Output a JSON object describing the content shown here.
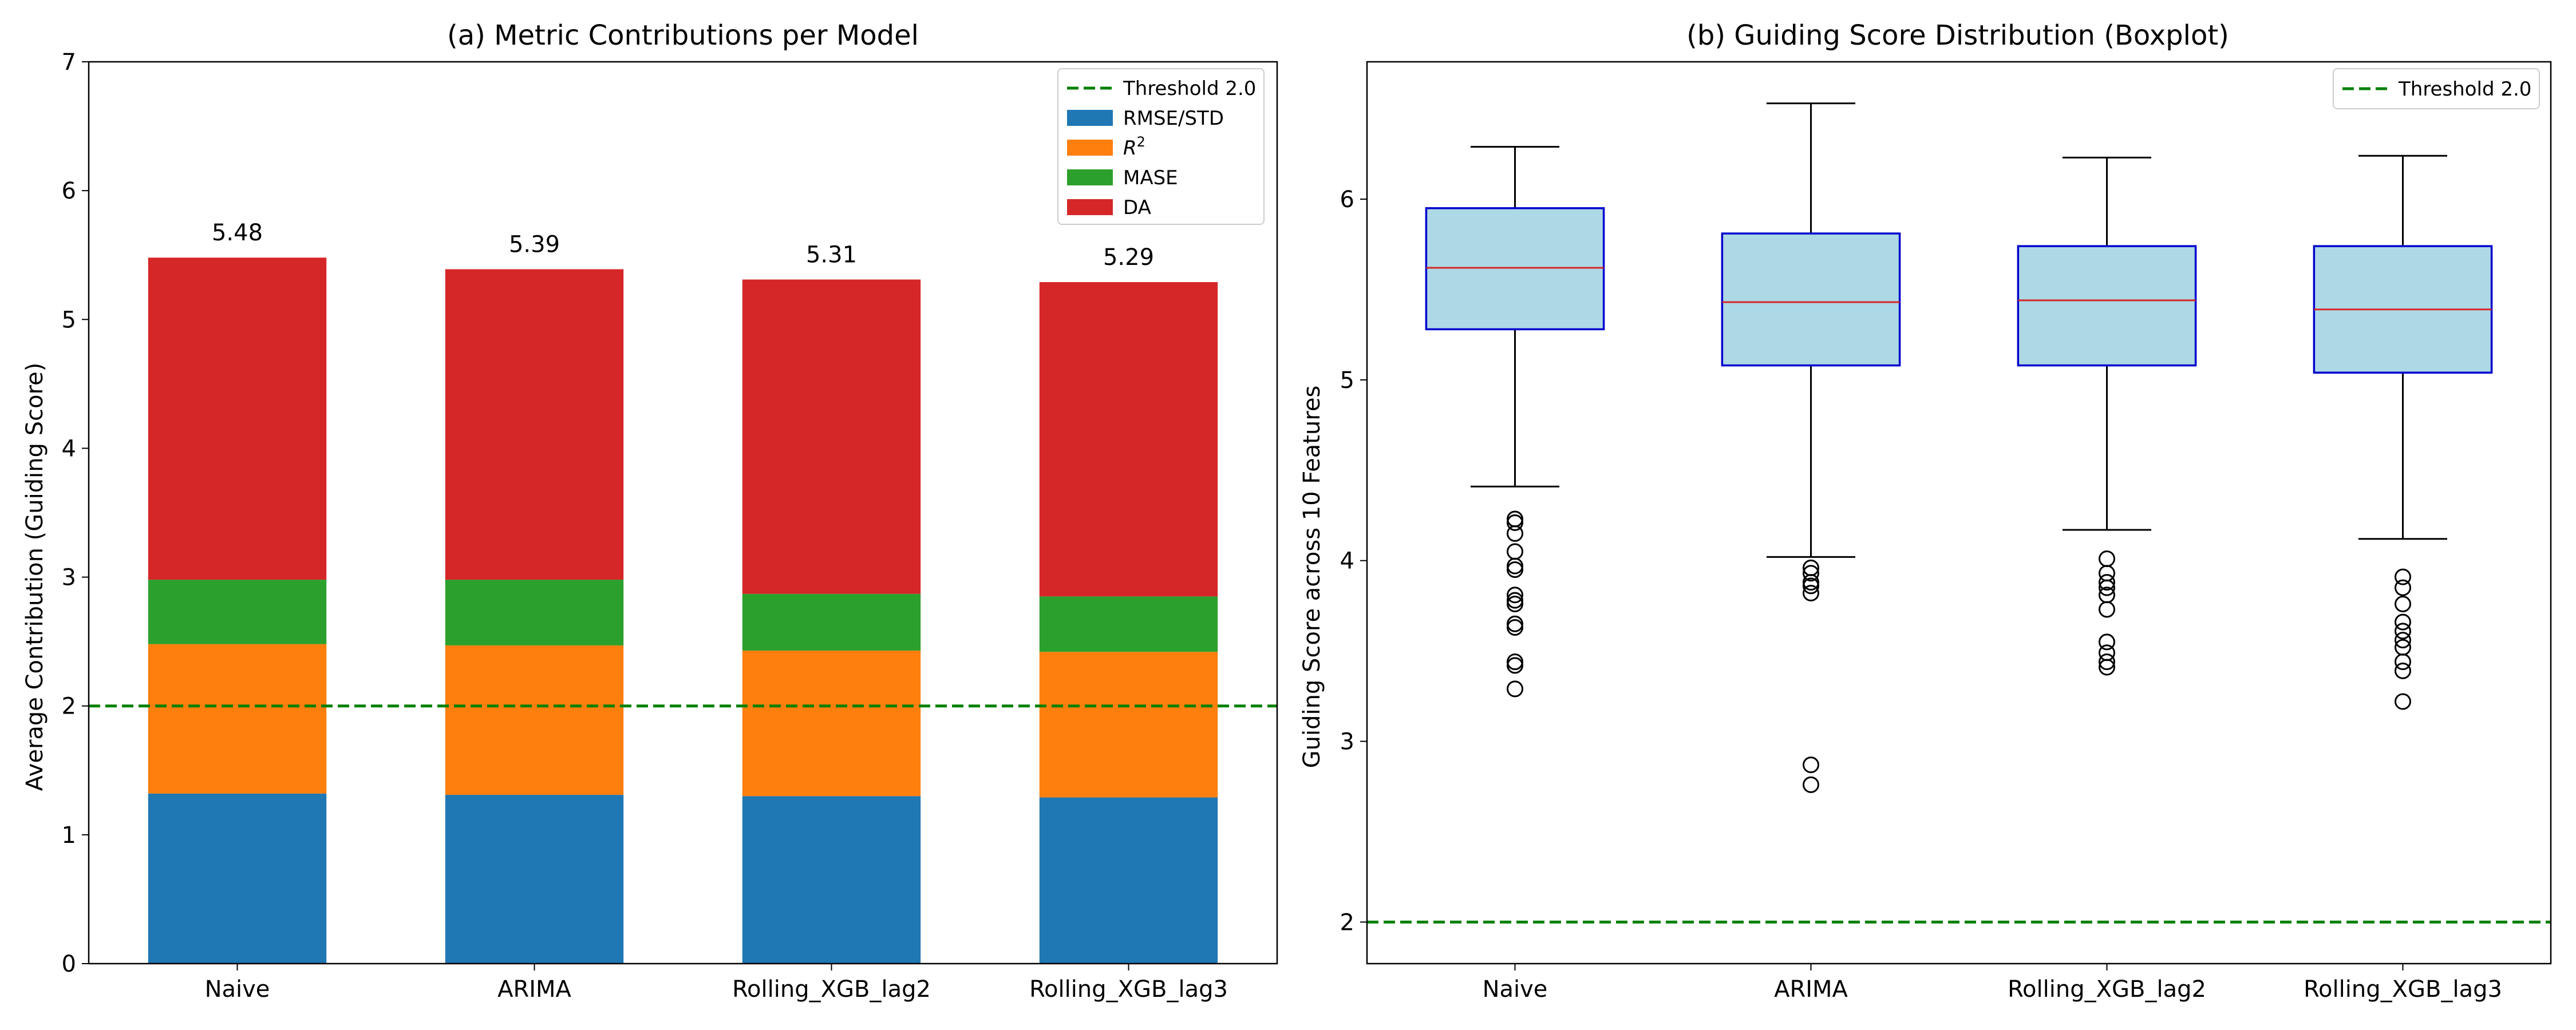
{
  "chart_data": [
    {
      "type": "bar",
      "stacked": true,
      "title": "(a) Metric Contributions per Model",
      "xlabel": "",
      "ylabel": "Average Contribution (Guiding Score)",
      "categories": [
        "Naive",
        "ARIMA",
        "Rolling_XGB_lag2",
        "Rolling_XGB_lag3"
      ],
      "ylim": [
        0,
        7
      ],
      "yticks": [
        "0",
        "1",
        "2",
        "3",
        "4",
        "5",
        "6",
        "7"
      ],
      "series": [
        {
          "name": "RMSE/STD",
          "color": "#1f77b4",
          "values": [
            1.32,
            1.31,
            1.3,
            1.29
          ]
        },
        {
          "name": "R2",
          "color": "#ff7f0e",
          "values": [
            1.16,
            1.16,
            1.13,
            1.13
          ]
        },
        {
          "name": "MASE",
          "color": "#2ca02c",
          "values": [
            0.5,
            0.51,
            0.44,
            0.43
          ]
        },
        {
          "name": "DA",
          "color": "#d62728",
          "values": [
            2.5,
            2.41,
            2.44,
            2.44
          ]
        }
      ],
      "totals": [
        5.48,
        5.39,
        5.31,
        5.29
      ],
      "total_labels": [
        "5.48",
        "5.39",
        "5.31",
        "5.29"
      ],
      "threshold": {
        "label": "Threshold 2.0",
        "value": 2.0,
        "color": "#008000"
      },
      "legend_position": "top-right",
      "grid": false
    },
    {
      "type": "box",
      "title": "(b) Guiding Score Distribution (Boxplot)",
      "xlabel": "",
      "ylabel": "Guiding Score across 10 Features",
      "categories": [
        "Naive",
        "ARIMA",
        "Rolling_XGB_lag2",
        "Rolling_XGB_lag3"
      ],
      "ylim": [
        1.77,
        6.76
      ],
      "yticks": [
        "2",
        "3",
        "4",
        "5",
        "6"
      ],
      "boxes": [
        {
          "whisker_low": 4.41,
          "q1": 5.28,
          "median": 5.62,
          "q3": 5.95,
          "whisker_high": 6.29,
          "outliers": [
            4.23,
            4.21,
            4.15,
            4.05,
            3.97,
            3.95,
            3.81,
            3.78,
            3.76,
            3.65,
            3.63,
            3.44,
            3.42,
            3.29
          ]
        },
        {
          "whisker_low": 4.02,
          "q1": 5.08,
          "median": 5.43,
          "q3": 5.81,
          "whisker_high": 6.53,
          "outliers": [
            3.96,
            3.93,
            3.88,
            3.86,
            3.82,
            2.87,
            2.76
          ]
        },
        {
          "whisker_low": 4.17,
          "q1": 5.08,
          "median": 5.44,
          "q3": 5.74,
          "whisker_high": 6.23,
          "outliers": [
            4.01,
            3.93,
            3.88,
            3.85,
            3.81,
            3.73,
            3.55,
            3.49,
            3.44,
            3.41
          ]
        },
        {
          "whisker_low": 4.12,
          "q1": 5.04,
          "median": 5.39,
          "q3": 5.74,
          "whisker_high": 6.24,
          "outliers": [
            3.91,
            3.85,
            3.76,
            3.66,
            3.61,
            3.56,
            3.52,
            3.44,
            3.39,
            3.22
          ]
        }
      ],
      "box_fill": "#add8e6",
      "box_edge": "#0000cd",
      "median_color": "#d62728",
      "threshold": {
        "label": "Threshold 2.0",
        "value": 2.0,
        "color": "#008000"
      },
      "legend_position": "top-right",
      "grid": false
    }
  ]
}
